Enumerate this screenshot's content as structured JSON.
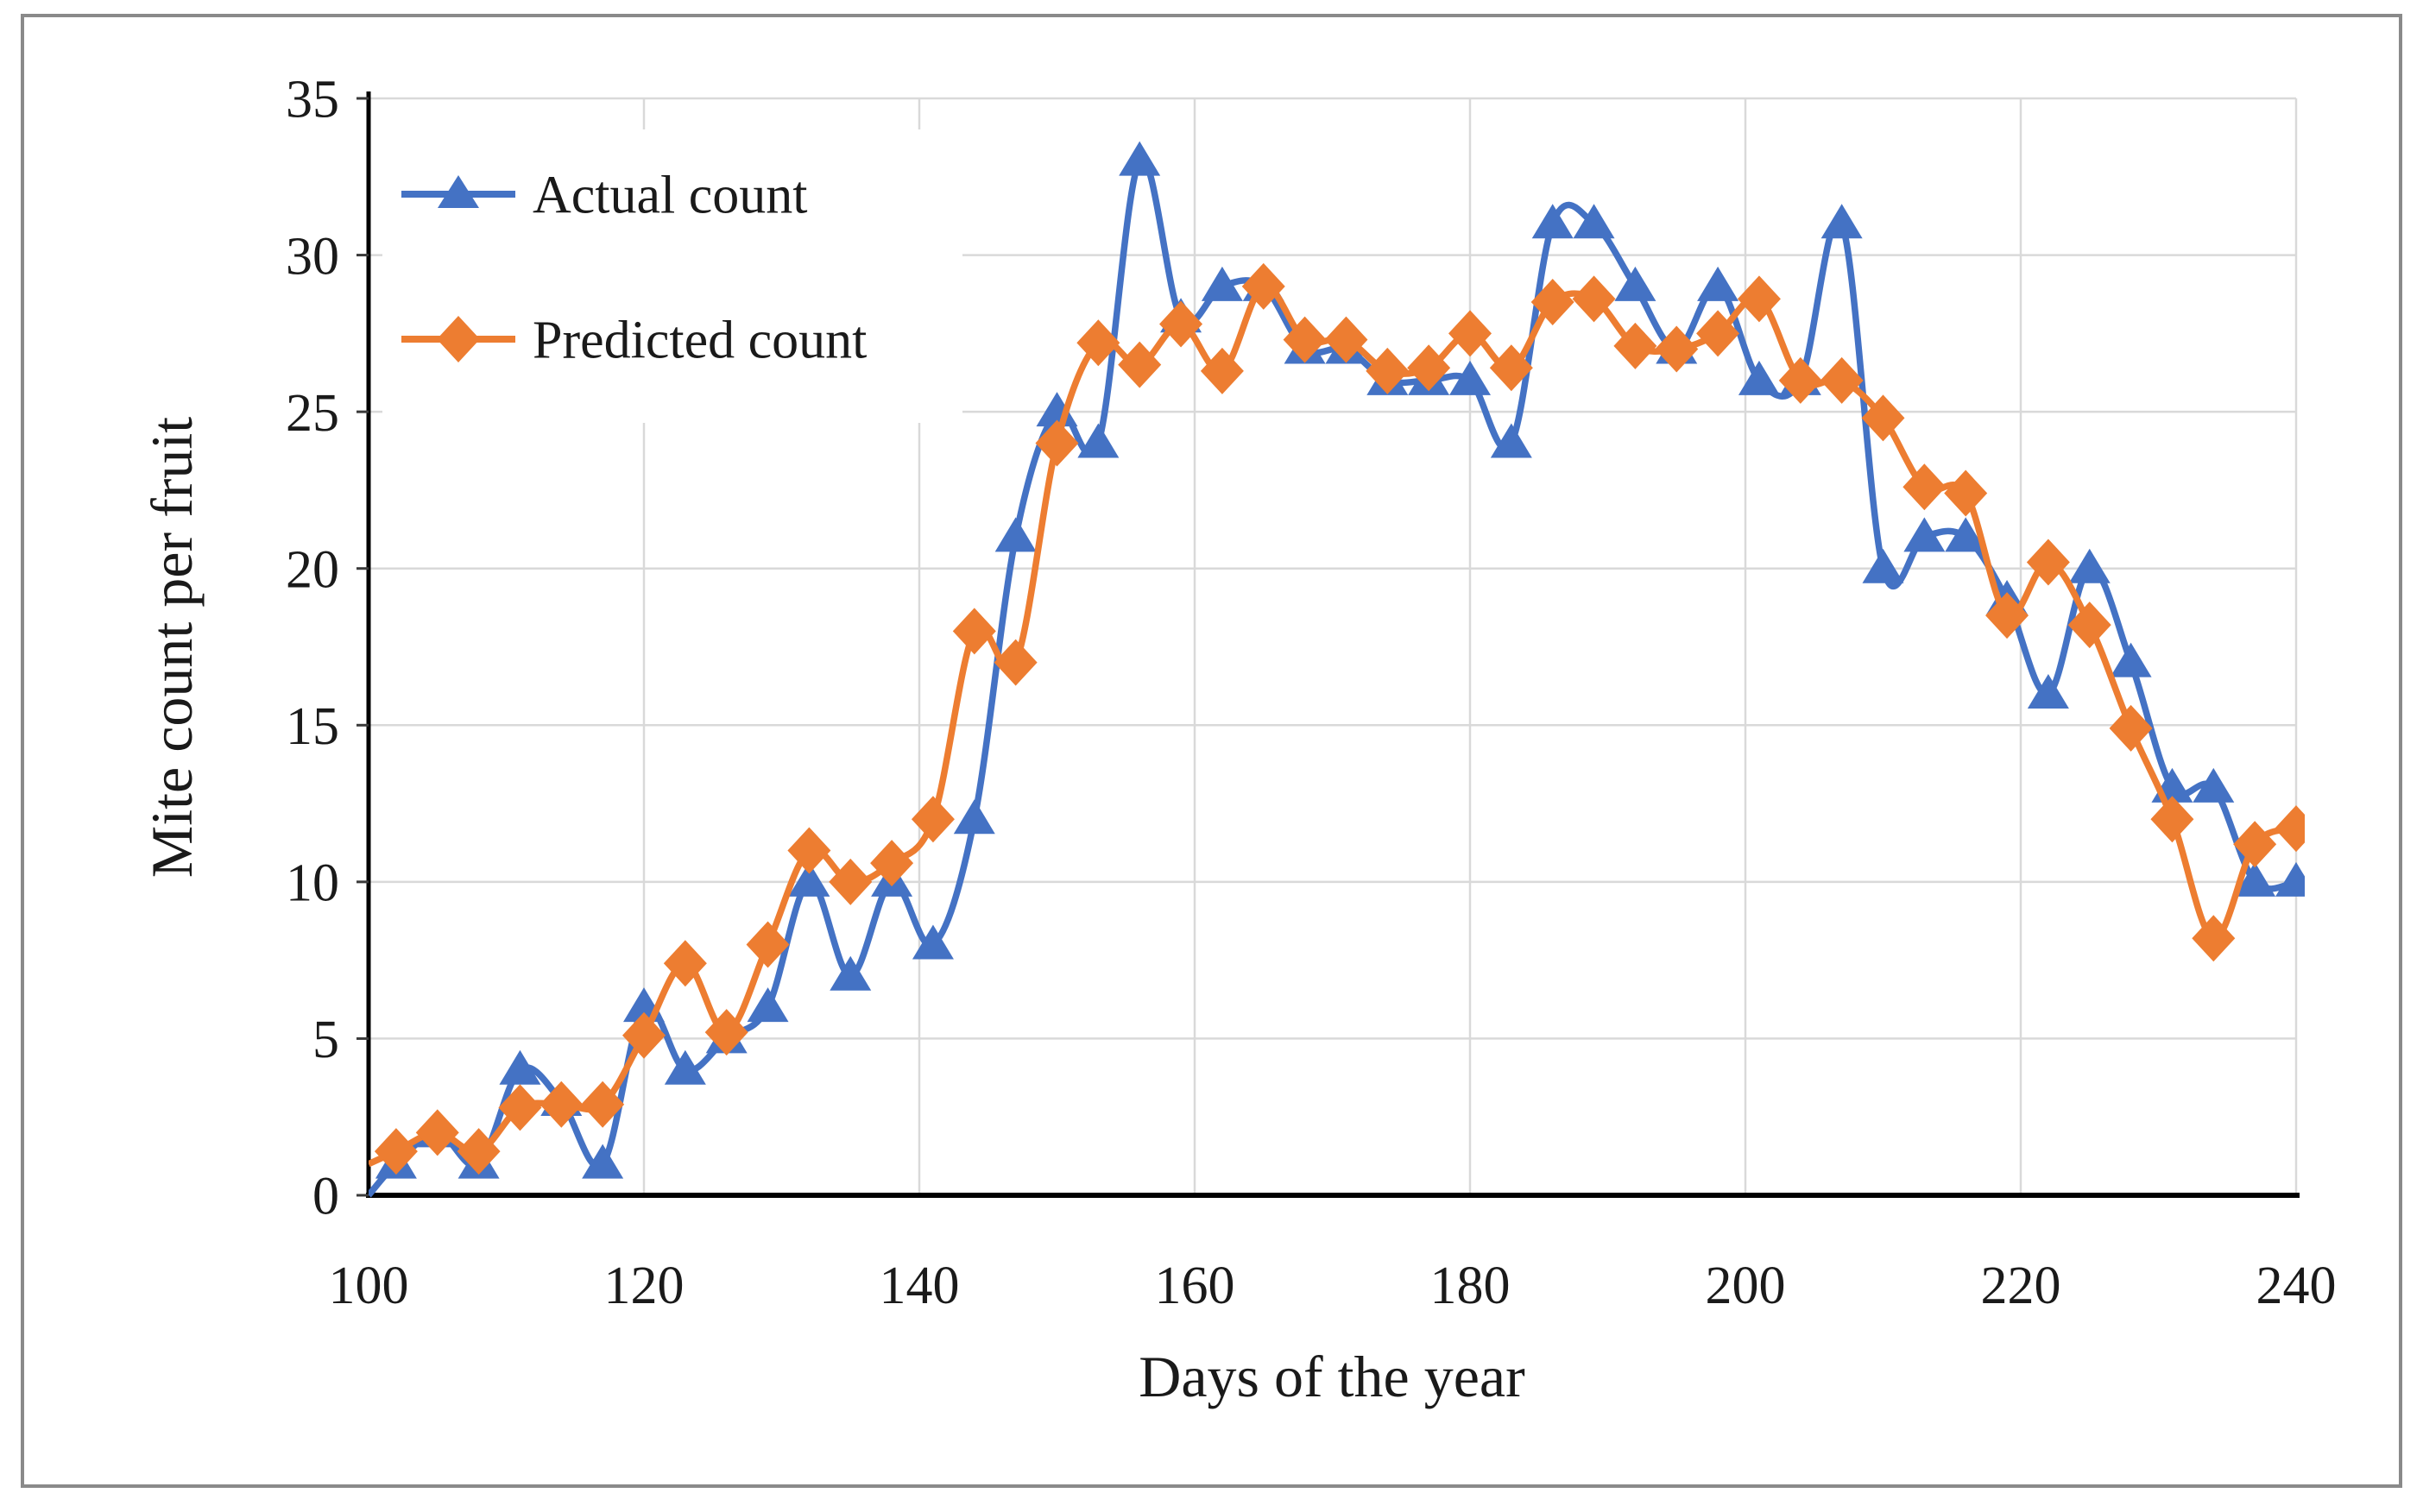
{
  "chart_data": {
    "type": "line",
    "title": "",
    "xlabel": "Days of the year",
    "ylabel": "Mite count per fruit",
    "xlim": [
      100,
      240
    ],
    "ylim": [
      0,
      35
    ],
    "x_ticks": [
      100,
      120,
      140,
      160,
      180,
      200,
      220,
      240
    ],
    "y_ticks": [
      0,
      5,
      10,
      15,
      20,
      25,
      30,
      35
    ],
    "grid": "on",
    "legend_position": "top-left-inside",
    "x": [
      100,
      102,
      105,
      108,
      111,
      114,
      117,
      120,
      123,
      126,
      129,
      132,
      135,
      138,
      141,
      144,
      147,
      150,
      153,
      156,
      159,
      162,
      165,
      168,
      171,
      174,
      177,
      180,
      183,
      186,
      189,
      192,
      195,
      198,
      201,
      204,
      207,
      210,
      213,
      216,
      219,
      222,
      225,
      228,
      231,
      234,
      237,
      240
    ],
    "series": [
      {
        "name": "Actual count",
        "marker": "triangle",
        "color": "#4472C4",
        "values": [
          0,
          1,
          2,
          1,
          4,
          3,
          1,
          6,
          4,
          5,
          6,
          10,
          7,
          10,
          8,
          12,
          21,
          25,
          24,
          33,
          28,
          29,
          29,
          27,
          27,
          26,
          26,
          26,
          24,
          31,
          31,
          29,
          27,
          29,
          26,
          26,
          31,
          20,
          21,
          21,
          19,
          16,
          20,
          17,
          13,
          13,
          10,
          10
        ]
      },
      {
        "name": "Predicted count",
        "marker": "diamond",
        "color": "#ED7D31",
        "values": [
          1.0,
          1.4,
          2.0,
          1.4,
          2.8,
          2.9,
          2.9,
          5.1,
          7.4,
          5.2,
          8.0,
          11.0,
          10.0,
          10.6,
          12.0,
          18.0,
          17.0,
          24.0,
          27.2,
          26.5,
          27.8,
          26.3,
          29.0,
          27.3,
          27.3,
          26.3,
          26.4,
          27.5,
          26.4,
          28.5,
          28.6,
          27.1,
          27.0,
          27.5,
          28.6,
          26.0,
          26.0,
          24.8,
          22.6,
          22.4,
          18.5,
          20.2,
          18.2,
          14.9,
          12.0,
          8.2,
          11.2,
          11.7
        ]
      }
    ]
  },
  "legend": {
    "items": [
      {
        "label": "Actual count"
      },
      {
        "label": "Predicted count"
      }
    ]
  },
  "colors": {
    "actual": "#4472C4",
    "predicted": "#ED7D31",
    "gridline": "#D9D9D9",
    "axis": "#000000",
    "text": "#1a1a1a",
    "figure_border": "#8a8a8a",
    "background": "#ffffff"
  }
}
